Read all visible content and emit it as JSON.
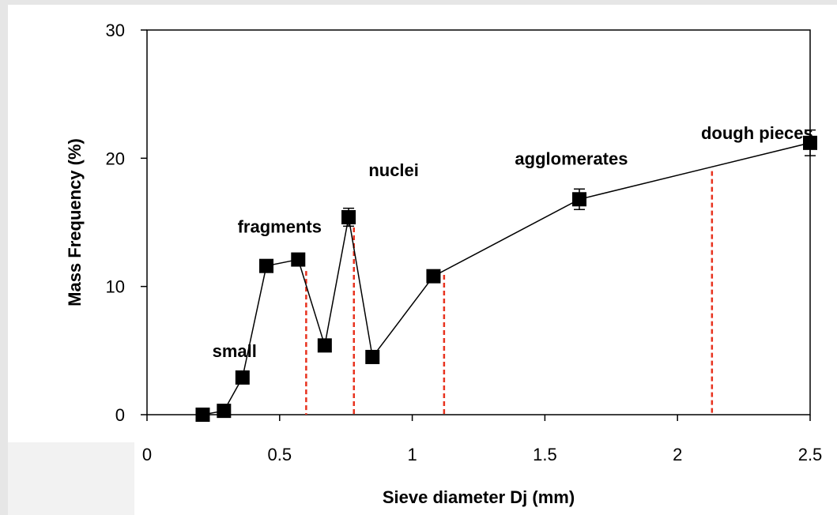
{
  "chart_data": {
    "type": "scatter",
    "title": "",
    "xlabel": "Sieve diameter Dj (mm)",
    "ylabel": "Mass Frequency (%)",
    "xlim": [
      0,
      2.5
    ],
    "ylim": [
      0,
      30
    ],
    "x_ticks": [
      "0",
      "0.5",
      "1",
      "1.5",
      "2",
      "2.5"
    ],
    "y_ticks": [
      "0",
      "10",
      "20",
      "30"
    ],
    "grid": false,
    "series": [
      {
        "x": [
          0.21,
          0.29,
          0.36,
          0.45,
          0.57,
          0.67,
          0.76,
          0.85,
          1.08,
          1.63,
          2.5
        ],
        "y": [
          0,
          0.3,
          2.9,
          11.6,
          12.1,
          5.4,
          15.4,
          4.5,
          10.8,
          16.8,
          21.2
        ],
        "error": [
          0,
          0,
          0,
          0,
          0,
          0,
          0.7,
          0,
          0,
          0.8,
          1.0
        ]
      }
    ],
    "boundaries": [
      0.6,
      0.78,
      1.12,
      2.13
    ],
    "annotations": [
      {
        "text": "small",
        "x": 0.33,
        "y": 4.5
      },
      {
        "text": "fragments",
        "x": 0.5,
        "y": 14.2
      },
      {
        "text": "nuclei",
        "x": 0.93,
        "y": 18.6
      },
      {
        "text": "agglomerates",
        "x": 1.6,
        "y": 19.5
      },
      {
        "text": "dough pieces",
        "x": 2.3,
        "y": 21.5
      }
    ],
    "colors": {
      "line": "#000000",
      "marker": "#000000",
      "boundary": "#e8321e",
      "plot_background": "#ffffff",
      "page_background": "#e6e6e6"
    }
  }
}
